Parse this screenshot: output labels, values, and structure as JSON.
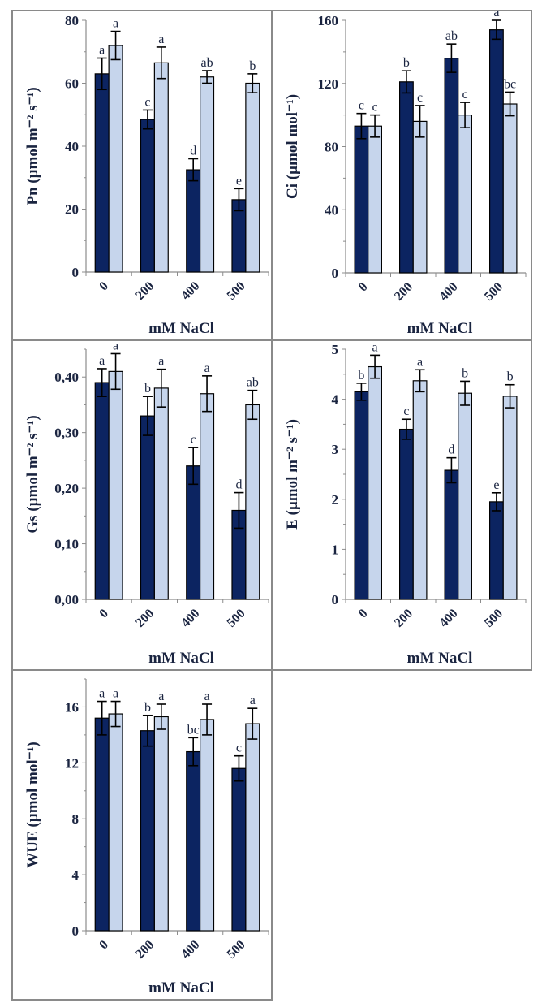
{
  "colors": {
    "dark_series": "#0c2461",
    "light_series": "#c6d5ec",
    "axis": "#8c8c8c",
    "frame": "#8a8a8a"
  },
  "chart_data": [
    {
      "type": "bar",
      "id": "pn",
      "ylabel": "Pn (µmol m⁻² s⁻¹)",
      "xlabel": "mM NaCl",
      "categories": [
        "0",
        "200",
        "400",
        "500"
      ],
      "ylim": [
        0,
        80
      ],
      "yticks": [
        0,
        20,
        40,
        60,
        80
      ],
      "ytick_labels": [
        "0",
        "20",
        "40",
        "60",
        "80"
      ],
      "grid": false,
      "series": [
        {
          "name": "dark",
          "values": [
            63,
            48.5,
            32.5,
            23
          ],
          "errors": [
            5,
            3,
            3.5,
            3.5
          ],
          "letters": [
            "a",
            "c",
            "d",
            "e"
          ]
        },
        {
          "name": "light",
          "values": [
            72,
            66.5,
            62,
            60
          ],
          "errors": [
            4.5,
            5,
            2,
            3
          ],
          "letters": [
            "a",
            "a",
            "ab",
            "b"
          ]
        }
      ]
    },
    {
      "type": "bar",
      "id": "ci",
      "ylabel": "Ci (µmol mol⁻¹)",
      "xlabel": "mM NaCl",
      "categories": [
        "0",
        "200",
        "400",
        "500"
      ],
      "ylim": [
        0,
        160
      ],
      "yticks": [
        0,
        40,
        80,
        120,
        160
      ],
      "ytick_labels": [
        "0",
        "40",
        "80",
        "120",
        "160"
      ],
      "grid": false,
      "series": [
        {
          "name": "dark",
          "values": [
            93,
            121,
            136,
            154
          ],
          "errors": [
            8,
            7,
            9,
            6
          ],
          "letters": [
            "c",
            "b",
            "ab",
            "a"
          ]
        },
        {
          "name": "light",
          "values": [
            93,
            96,
            100,
            107
          ],
          "errors": [
            7,
            10,
            8,
            7.5
          ],
          "letters": [
            "c",
            "c",
            "c",
            "bc"
          ]
        }
      ]
    },
    {
      "type": "bar",
      "id": "gs",
      "ylabel": "Gs (µmol m⁻² s⁻¹)",
      "xlabel": "mM NaCl",
      "categories": [
        "0",
        "200",
        "400",
        "500"
      ],
      "ylim": [
        0,
        0.45
      ],
      "yticks": [
        0,
        0.1,
        0.2,
        0.3,
        0.4
      ],
      "ytick_labels": [
        "0,00",
        "0,10",
        "0,20",
        "0,30",
        "0,40"
      ],
      "grid": false,
      "series": [
        {
          "name": "dark",
          "values": [
            0.39,
            0.33,
            0.24,
            0.16
          ],
          "errors": [
            0.025,
            0.035,
            0.033,
            0.032
          ],
          "letters": [
            "a",
            "b",
            "c",
            "d"
          ]
        },
        {
          "name": "light",
          "values": [
            0.41,
            0.38,
            0.37,
            0.35
          ],
          "errors": [
            0.032,
            0.034,
            0.032,
            0.026
          ],
          "letters": [
            "a",
            "a",
            "a",
            "ab"
          ]
        }
      ]
    },
    {
      "type": "bar",
      "id": "e",
      "ylabel": "E (µmol m⁻² s⁻¹)",
      "xlabel": "mM NaCl",
      "categories": [
        "0",
        "200",
        "400",
        "500"
      ],
      "ylim": [
        0,
        5
      ],
      "yticks": [
        0,
        1,
        2,
        3,
        4,
        5
      ],
      "ytick_labels": [
        "0",
        "1",
        "2",
        "3",
        "4",
        "5"
      ],
      "grid": false,
      "series": [
        {
          "name": "dark",
          "values": [
            4.15,
            3.4,
            2.58,
            1.95
          ],
          "errors": [
            0.17,
            0.2,
            0.25,
            0.18
          ],
          "letters": [
            "b",
            "c",
            "d",
            "e"
          ]
        },
        {
          "name": "light",
          "values": [
            4.65,
            4.37,
            4.12,
            4.06
          ],
          "errors": [
            0.23,
            0.22,
            0.24,
            0.23
          ],
          "letters": [
            "a",
            "a",
            "b",
            "b"
          ]
        }
      ]
    },
    {
      "type": "bar",
      "id": "wue",
      "ylabel": "WUE (µmol mol⁻¹)",
      "xlabel": "mM NaCl",
      "categories": [
        "0",
        "200",
        "400",
        "500"
      ],
      "ylim": [
        0,
        18
      ],
      "yticks": [
        0,
        4,
        8,
        12,
        16
      ],
      "ytick_labels": [
        "0",
        "4",
        "8",
        "12",
        "16"
      ],
      "grid": false,
      "series": [
        {
          "name": "dark",
          "values": [
            15.2,
            14.3,
            12.8,
            11.6
          ],
          "errors": [
            1.2,
            1.1,
            1.0,
            0.9
          ],
          "letters": [
            "a",
            "b",
            "bc",
            "c"
          ]
        },
        {
          "name": "light",
          "values": [
            15.5,
            15.3,
            15.1,
            14.8
          ],
          "errors": [
            0.9,
            0.9,
            1.1,
            1.1
          ],
          "letters": [
            "a",
            "a",
            "a",
            "a"
          ]
        }
      ]
    }
  ]
}
